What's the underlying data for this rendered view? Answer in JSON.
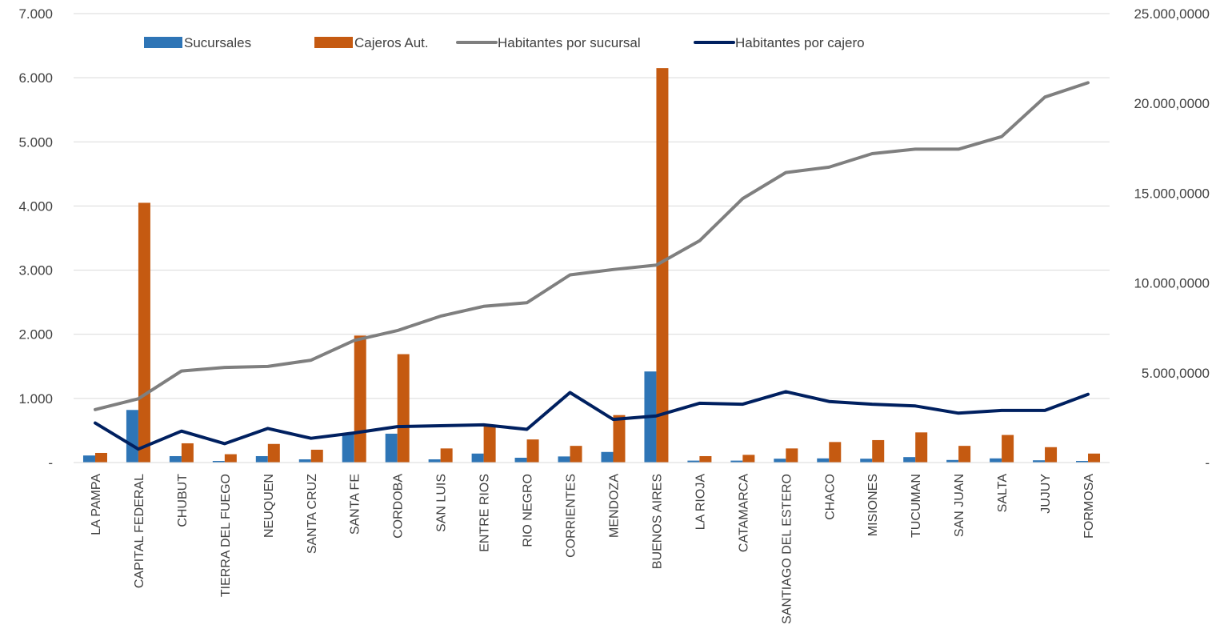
{
  "chart_data": {
    "type": "bar",
    "title": "",
    "xlabel": "",
    "ylabel": "",
    "y2label": "",
    "ylim": [
      0,
      7000
    ],
    "y2lim": [
      0,
      25000000
    ],
    "y_ticks": [
      {
        "value": 0,
        "label": "-"
      },
      {
        "value": 1000,
        "label": "1.000"
      },
      {
        "value": 2000,
        "label": "2.000"
      },
      {
        "value": 3000,
        "label": "3.000"
      },
      {
        "value": 4000,
        "label": "4.000"
      },
      {
        "value": 5000,
        "label": "5.000"
      },
      {
        "value": 6000,
        "label": "6.000"
      },
      {
        "value": 7000,
        "label": "7.000"
      }
    ],
    "y2_ticks": [
      {
        "value": 0,
        "label": "-"
      },
      {
        "value": 5000000,
        "label": "5.000,0000"
      },
      {
        "value": 10000000,
        "label": "10.000,0000"
      },
      {
        "value": 15000000,
        "label": "15.000,0000"
      },
      {
        "value": 20000000,
        "label": "20.000,0000"
      },
      {
        "value": 25000000,
        "label": "25.000,0000"
      }
    ],
    "grid": true,
    "legend_position": "top",
    "categories": [
      "LA PAMPA",
      "CAPITAL FEDERAL",
      "CHUBUT",
      "TIERRA DEL FUEGO",
      "NEUQUEN",
      "SANTA CRUZ",
      "SANTA FE",
      "CORDOBA",
      "SAN LUIS",
      "ENTRE RIOS",
      "RIO NEGRO",
      "CORRIENTES",
      "MENDOZA",
      "BUENOS AIRES",
      "LA RIOJA",
      "CATAMARCA",
      "SANTIAGO DEL ESTERO",
      "CHACO",
      "MISIONES",
      "TUCUMAN",
      "SAN JUAN",
      "SALTA",
      "JUJUY",
      "FORMOSA"
    ],
    "series": [
      {
        "name": "Sucursales",
        "kind": "bar",
        "axis": "left",
        "color": "#2e75b6",
        "values": [
          110,
          820,
          100,
          25,
          100,
          50,
          460,
          450,
          50,
          140,
          75,
          95,
          165,
          1420,
          30,
          30,
          60,
          65,
          60,
          85,
          40,
          65,
          35,
          25
        ]
      },
      {
        "name": "Cajeros Aut.",
        "kind": "bar",
        "axis": "left",
        "color": "#c55a11",
        "values": [
          150,
          4050,
          300,
          130,
          290,
          200,
          1980,
          1690,
          220,
          580,
          360,
          260,
          740,
          6150,
          100,
          120,
          220,
          320,
          350,
          470,
          260,
          430,
          240,
          140
        ]
      },
      {
        "name": "Habitantes por sucursal",
        "kind": "line",
        "axis": "right",
        "color": "#7f7f7f",
        "values": [
          2950000,
          3550000,
          5100000,
          5300000,
          5350000,
          5700000,
          6800000,
          7350000,
          8150000,
          8700000,
          8900000,
          10450000,
          10750000,
          11000000,
          12350000,
          14700000,
          16150000,
          16450000,
          17200000,
          17450000,
          17450000,
          18150000,
          20350000,
          21150000
        ]
      },
      {
        "name": "Habitantes por cajero",
        "kind": "line",
        "axis": "right",
        "color": "#002060",
        "values": [
          2200000,
          750000,
          1750000,
          1050000,
          1900000,
          1350000,
          1650000,
          2000000,
          2050000,
          2100000,
          1850000,
          3900000,
          2400000,
          2600000,
          3300000,
          3250000,
          3950000,
          3400000,
          3250000,
          3150000,
          2750000,
          2900000,
          2900000,
          3800000
        ]
      }
    ]
  }
}
